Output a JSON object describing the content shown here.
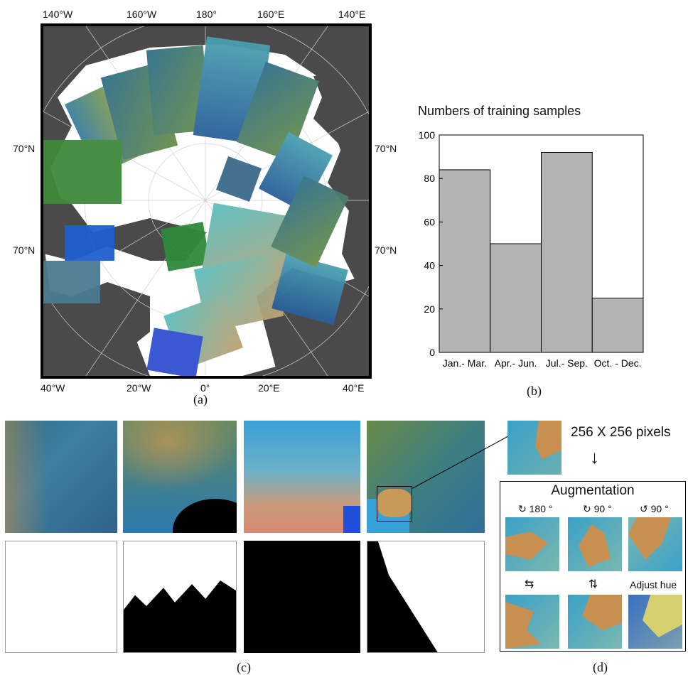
{
  "map": {
    "top_lon_labels": [
      "140°W",
      "160°W",
      "180°",
      "160°E",
      "140°E"
    ],
    "bottom_lon_labels": [
      "40°W",
      "20°W",
      "0°",
      "20°E",
      "40°E"
    ],
    "lat_labels_left": [
      "70°N",
      "70°N"
    ],
    "lat_labels_right": [
      "70°N",
      "70°N"
    ],
    "caption": "(a)"
  },
  "chart_data": {
    "type": "bar",
    "title": "Numbers of training samples",
    "categories": [
      "Jan.- Mar.",
      "Apr.- Jun.",
      "Jul.- Sep.",
      "Oct. - Dec."
    ],
    "values": [
      84,
      50,
      92,
      25
    ],
    "ylim": [
      0,
      100
    ],
    "yticks": [
      0,
      20,
      40,
      60,
      80,
      100
    ],
    "bar_color": "#b3b3b3",
    "caption": "(b)"
  },
  "samples": {
    "caption": "(c)"
  },
  "augmentation": {
    "size_label": "256 X 256 pixels",
    "title": "Augmentation",
    "rot1": "180 °",
    "rot2": "90 °",
    "rot3": "90 °",
    "adjust_hue": "Adjust hue",
    "caption": "(d)"
  }
}
